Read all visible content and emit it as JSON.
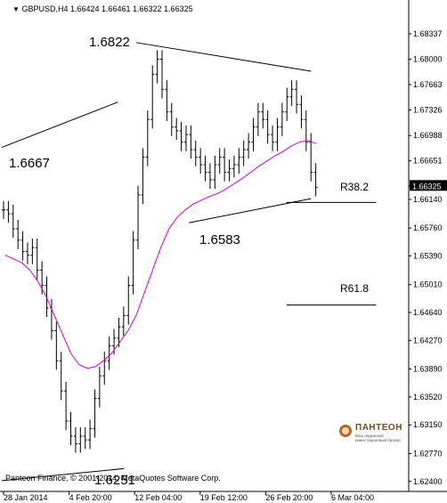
{
  "header": {
    "collapse_icon": "triangle-down-icon",
    "ohlc_text": "GBPUSD,H4  1.66424 1.66461 1.66322 1.66325"
  },
  "footer": {
    "copyright": "Panteon Finance, © 2001-2014, MetaQuotes Software Corp."
  },
  "logo": {
    "name": "ПАНТЕОН",
    "subtitle": "Ваш надежный инвестиционный брокер"
  },
  "colors": {
    "price": "#000000",
    "moving_average": "#d400d4",
    "current_price_bg": "#000000"
  },
  "chart_data": {
    "type": "candlestick",
    "symbol": "GBPUSD",
    "timeframe": "H4",
    "current_price": "1.66325",
    "ylim": [
      1.6235,
      1.6869
    ],
    "y_ticks": [
      "1.68337",
      "1.68000",
      "1.67663",
      "1.67326",
      "1.66988",
      "1.66651",
      "1.66314",
      "1.66140",
      "1.65760",
      "1.65390",
      "1.65010",
      "1.64640",
      "1.64270",
      "1.63890",
      "1.63520",
      "1.63150",
      "1.62770",
      "1.62400"
    ],
    "x_ticks": [
      "28 Jan 2014",
      "4 Feb 20:00",
      "12 Feb 04:00",
      "19 Feb 12:00",
      "26 Feb 20:00",
      "6 Mar 04:00"
    ],
    "annotations": [
      "1.6822",
      "1.6667",
      "1.6583",
      "1.6251",
      "R38.2",
      "R61.8"
    ],
    "price_series": [
      1.66,
      1.6595,
      1.6575,
      1.656,
      1.6545,
      1.654,
      1.655,
      1.652,
      1.65,
      1.647,
      1.644,
      1.64,
      1.636,
      1.632,
      1.63,
      1.629,
      1.63,
      1.6295,
      1.631,
      1.635,
      1.638,
      1.64,
      1.642,
      1.643,
      1.6445,
      1.646,
      1.65,
      1.656,
      1.662,
      1.667,
      1.672,
      1.678,
      1.68,
      1.676,
      1.673,
      1.671,
      1.6705,
      1.669,
      1.67,
      1.668,
      1.667,
      1.666,
      1.665,
      1.664,
      1.666,
      1.667,
      1.665,
      1.6655,
      1.666,
      1.667,
      1.668,
      1.669,
      1.671,
      1.673,
      1.672,
      1.67,
      1.669,
      1.671,
      1.673,
      1.675,
      1.676,
      1.674,
      1.672,
      1.669,
      1.665,
      1.663
    ],
    "moving_average": [
      1.654,
      1.6535,
      1.653,
      1.652,
      1.6505,
      1.6485,
      1.646,
      1.6435,
      1.641,
      1.6395,
      1.639,
      1.6392,
      1.64,
      1.641,
      1.6425,
      1.644,
      1.646,
      1.649,
      1.652,
      1.655,
      1.6575,
      1.659,
      1.66,
      1.6608,
      1.6613,
      1.6618,
      1.6622,
      1.6628,
      1.6635,
      1.6642,
      1.665,
      1.6658,
      1.6665,
      1.6672,
      1.6678,
      1.6685,
      1.669,
      1.6692,
      1.6688
    ],
    "trendlines": [
      {
        "from": [
          0.0,
          1.6683
        ],
        "to": [
          0.285,
          1.6743
        ]
      },
      {
        "from": [
          0.33,
          1.6822
        ],
        "to": [
          0.76,
          1.6784
        ]
      },
      {
        "from": [
          0.46,
          1.6583
        ],
        "to": [
          0.76,
          1.6615
        ]
      },
      {
        "from": [
          0.0,
          1.6241
        ],
        "to": [
          0.3,
          1.6257
        ]
      },
      {
        "from": [
          0.7,
          1.661
        ],
        "to": [
          0.92,
          1.661
        ]
      },
      {
        "from": [
          0.7,
          1.6474
        ],
        "to": [
          0.92,
          1.6474
        ]
      }
    ]
  }
}
